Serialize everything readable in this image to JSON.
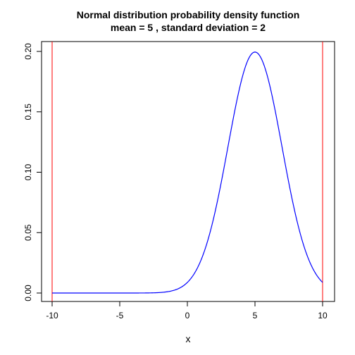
{
  "chart_data": {
    "type": "line",
    "title": "Normal distribution probability density function",
    "subtitle": "mean =  5 , standard deviation =  2",
    "xlabel": "x",
    "ylabel": "",
    "xlim": [
      -10,
      10
    ],
    "ylim": [
      0,
      0.2
    ],
    "x_ticks": [
      "-10",
      "-5",
      "0",
      "5",
      "10"
    ],
    "y_ticks": [
      "0.00",
      "0.05",
      "0.10",
      "0.15",
      "0.20"
    ],
    "grid": false,
    "legend": "none",
    "distribution": {
      "mean": 5,
      "sd": 2
    },
    "series": [
      {
        "x": [
          -10,
          -8,
          -6,
          -4,
          -2,
          -1,
          0,
          1,
          2,
          3,
          4,
          5,
          6,
          7,
          8,
          9,
          10
        ],
        "y": [
          0.0,
          0.0,
          0.0,
          0.0,
          0.0004,
          0.0022,
          0.0088,
          0.027,
          0.0648,
          0.121,
          0.176,
          0.1995,
          0.176,
          0.121,
          0.0648,
          0.027,
          0.0088
        ],
        "color": "#0000ff"
      }
    ],
    "vertical_lines": [
      {
        "x": -10,
        "color": "#ff0000"
      },
      {
        "x": 10,
        "color": "#ff0000"
      }
    ]
  }
}
